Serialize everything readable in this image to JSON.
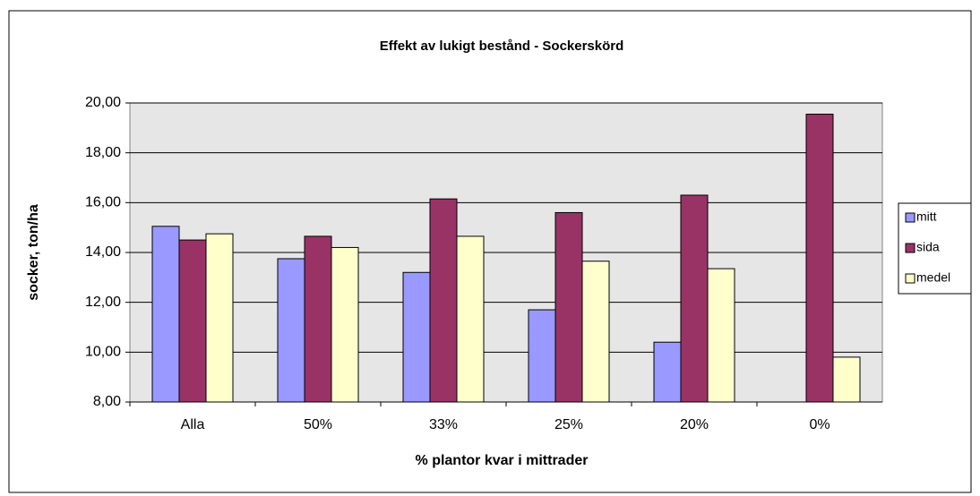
{
  "chart_data": {
    "type": "bar",
    "title": "Effekt av lukigt bestånd - Sockerskörd",
    "xlabel": "% plantor kvar i mittrader",
    "ylabel": "socker, ton/ha",
    "categories": [
      "Alla",
      "50%",
      "33%",
      "25%",
      "20%",
      "0%"
    ],
    "series": [
      {
        "name": "mitt",
        "color": "#9999ff",
        "values": [
          15.05,
          13.75,
          13.2,
          11.7,
          10.4,
          8.0
        ]
      },
      {
        "name": "sida",
        "color": "#993366",
        "values": [
          14.5,
          14.65,
          16.15,
          15.6,
          16.3,
          19.55
        ]
      },
      {
        "name": "medel",
        "color": "#ffffcc",
        "values": [
          14.75,
          14.2,
          14.65,
          13.65,
          13.35,
          9.8
        ]
      }
    ],
    "ylim": [
      8,
      20
    ],
    "yticks": [
      {
        "value": 8,
        "label": "8,00"
      },
      {
        "value": 10,
        "label": "10,00"
      },
      {
        "value": 12,
        "label": "12,00"
      },
      {
        "value": 14,
        "label": "14,00"
      },
      {
        "value": 16,
        "label": "16,00"
      },
      {
        "value": 18,
        "label": "18,00"
      },
      {
        "value": 20,
        "label": "20,00"
      }
    ],
    "grid": true,
    "legend": "right"
  }
}
